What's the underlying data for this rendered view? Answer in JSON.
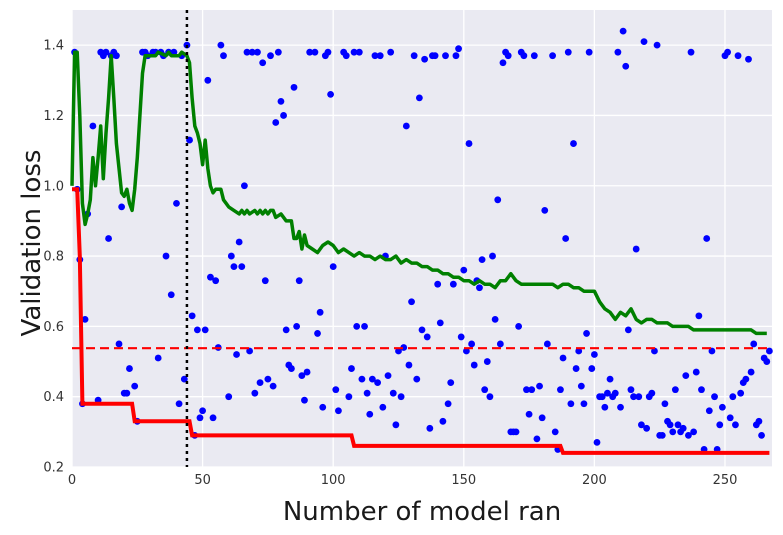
{
  "chart_data": {
    "type": "scatter",
    "xlabel": "Number of model ran",
    "ylabel": "Validation loss",
    "xlim": [
      0,
      268
    ],
    "ylim": [
      0.2,
      1.5
    ],
    "x_ticks": [
      0,
      50,
      100,
      150,
      200,
      250
    ],
    "y_ticks": [
      0.2,
      0.4,
      0.6,
      0.8,
      1.0,
      1.2,
      1.4
    ],
    "x_tick_labels": [
      "0",
      "50",
      "100",
      "150",
      "200",
      "250"
    ],
    "y_tick_labels": [
      "0.2",
      "0.4",
      "0.6",
      "0.8",
      "1.0",
      "1.2",
      "1.4"
    ],
    "grid": true,
    "colors": {
      "background": "#eaeaf2",
      "grid": "#ffffff",
      "points": "#0000ff",
      "best_so_far": "#ff0000",
      "moving_average": "#008000",
      "threshold": "#ff0000",
      "marker_line": "#000000"
    },
    "scatter_points": [
      [
        1,
        1.38
      ],
      [
        2,
        0.99
      ],
      [
        3,
        0.79
      ],
      [
        4,
        0.38
      ],
      [
        5,
        0.62
      ],
      [
        6,
        0.92
      ],
      [
        8,
        1.17
      ],
      [
        10,
        0.39
      ],
      [
        11,
        1.38
      ],
      [
        12,
        1.37
      ],
      [
        13,
        1.38
      ],
      [
        14,
        0.85
      ],
      [
        15,
        1.37
      ],
      [
        16,
        1.38
      ],
      [
        17,
        1.37
      ],
      [
        18,
        0.55
      ],
      [
        19,
        0.94
      ],
      [
        20,
        0.41
      ],
      [
        21,
        0.41
      ],
      [
        22,
        0.48
      ],
      [
        24,
        0.43
      ],
      [
        25,
        0.33
      ],
      [
        27,
        1.38
      ],
      [
        28,
        1.38
      ],
      [
        29,
        1.37
      ],
      [
        31,
        1.38
      ],
      [
        32,
        1.38
      ],
      [
        33,
        0.51
      ],
      [
        34,
        1.38
      ],
      [
        35,
        1.37
      ],
      [
        36,
        0.8
      ],
      [
        37,
        1.38
      ],
      [
        38,
        0.69
      ],
      [
        39,
        1.38
      ],
      [
        40,
        0.95
      ],
      [
        41,
        0.38
      ],
      [
        42,
        1.37
      ],
      [
        43,
        0.45
      ],
      [
        44,
        1.4
      ],
      [
        45,
        1.13
      ],
      [
        46,
        0.63
      ],
      [
        47,
        0.29
      ],
      [
        48,
        0.59
      ],
      [
        49,
        0.34
      ],
      [
        50,
        0.36
      ],
      [
        51,
        0.59
      ],
      [
        52,
        1.3
      ],
      [
        53,
        0.74
      ],
      [
        54,
        0.34
      ],
      [
        55,
        0.73
      ],
      [
        56,
        0.54
      ],
      [
        57,
        1.4
      ],
      [
        58,
        1.37
      ],
      [
        60,
        0.4
      ],
      [
        61,
        0.8
      ],
      [
        62,
        0.77
      ],
      [
        63,
        0.52
      ],
      [
        64,
        0.84
      ],
      [
        65,
        0.77
      ],
      [
        66,
        1.0
      ],
      [
        67,
        1.38
      ],
      [
        68,
        0.53
      ],
      [
        69,
        1.38
      ],
      [
        70,
        0.41
      ],
      [
        71,
        1.38
      ],
      [
        72,
        0.44
      ],
      [
        73,
        1.35
      ],
      [
        74,
        0.73
      ],
      [
        75,
        0.45
      ],
      [
        76,
        1.37
      ],
      [
        77,
        0.43
      ],
      [
        78,
        1.18
      ],
      [
        79,
        1.38
      ],
      [
        80,
        1.24
      ],
      [
        81,
        1.2
      ],
      [
        82,
        0.59
      ],
      [
        83,
        0.49
      ],
      [
        84,
        0.48
      ],
      [
        85,
        1.28
      ],
      [
        86,
        0.6
      ],
      [
        87,
        0.73
      ],
      [
        88,
        0.46
      ],
      [
        89,
        0.39
      ],
      [
        90,
        0.47
      ],
      [
        91,
        1.38
      ],
      [
        93,
        1.38
      ],
      [
        94,
        0.58
      ],
      [
        95,
        0.64
      ],
      [
        96,
        0.37
      ],
      [
        97,
        1.37
      ],
      [
        98,
        1.38
      ],
      [
        99,
        1.26
      ],
      [
        100,
        0.77
      ],
      [
        101,
        0.42
      ],
      [
        102,
        0.36
      ],
      [
        104,
        1.38
      ],
      [
        105,
        1.37
      ],
      [
        106,
        0.4
      ],
      [
        107,
        0.48
      ],
      [
        108,
        1.38
      ],
      [
        109,
        0.6
      ],
      [
        110,
        1.38
      ],
      [
        111,
        0.45
      ],
      [
        112,
        0.6
      ],
      [
        113,
        0.41
      ],
      [
        114,
        0.35
      ],
      [
        115,
        0.45
      ],
      [
        116,
        1.37
      ],
      [
        117,
        0.44
      ],
      [
        118,
        1.37
      ],
      [
        119,
        0.37
      ],
      [
        120,
        0.8
      ],
      [
        121,
        0.46
      ],
      [
        122,
        1.38
      ],
      [
        123,
        0.41
      ],
      [
        124,
        0.32
      ],
      [
        125,
        0.53
      ],
      [
        126,
        0.4
      ],
      [
        127,
        0.54
      ],
      [
        128,
        1.17
      ],
      [
        129,
        0.49
      ],
      [
        130,
        0.67
      ],
      [
        131,
        1.37
      ],
      [
        132,
        0.45
      ],
      [
        133,
        1.25
      ],
      [
        134,
        0.59
      ],
      [
        135,
        1.36
      ],
      [
        136,
        0.57
      ],
      [
        137,
        0.31
      ],
      [
        138,
        1.37
      ],
      [
        139,
        1.37
      ],
      [
        140,
        0.72
      ],
      [
        141,
        0.61
      ],
      [
        142,
        0.33
      ],
      [
        143,
        1.37
      ],
      [
        144,
        0.38
      ],
      [
        145,
        0.44
      ],
      [
        146,
        0.72
      ],
      [
        147,
        1.37
      ],
      [
        148,
        1.39
      ],
      [
        149,
        0.57
      ],
      [
        150,
        0.76
      ],
      [
        151,
        0.53
      ],
      [
        152,
        1.12
      ],
      [
        153,
        0.55
      ],
      [
        154,
        0.49
      ],
      [
        155,
        0.73
      ],
      [
        156,
        0.71
      ],
      [
        157,
        0.79
      ],
      [
        158,
        0.42
      ],
      [
        159,
        0.5
      ],
      [
        160,
        0.4
      ],
      [
        161,
        0.8
      ],
      [
        162,
        0.62
      ],
      [
        163,
        0.96
      ],
      [
        164,
        0.55
      ],
      [
        165,
        1.35
      ],
      [
        166,
        1.38
      ],
      [
        167,
        1.37
      ],
      [
        168,
        0.3
      ],
      [
        169,
        0.3
      ],
      [
        170,
        0.3
      ],
      [
        171,
        0.6
      ],
      [
        172,
        1.38
      ],
      [
        173,
        1.37
      ],
      [
        174,
        0.42
      ],
      [
        175,
        0.35
      ],
      [
        176,
        0.42
      ],
      [
        177,
        1.37
      ],
      [
        178,
        0.28
      ],
      [
        179,
        0.43
      ],
      [
        180,
        0.34
      ],
      [
        181,
        0.93
      ],
      [
        182,
        0.55
      ],
      [
        184,
        1.37
      ],
      [
        185,
        0.3
      ],
      [
        186,
        0.25
      ],
      [
        187,
        0.42
      ],
      [
        188,
        0.51
      ],
      [
        189,
        0.85
      ],
      [
        190,
        1.38
      ],
      [
        191,
        0.38
      ],
      [
        192,
        1.12
      ],
      [
        193,
        0.48
      ],
      [
        194,
        0.53
      ],
      [
        195,
        0.43
      ],
      [
        196,
        0.38
      ],
      [
        197,
        0.58
      ],
      [
        198,
        1.38
      ],
      [
        199,
        0.48
      ],
      [
        200,
        0.52
      ],
      [
        201,
        0.27
      ],
      [
        202,
        0.4
      ],
      [
        203,
        0.4
      ],
      [
        204,
        0.37
      ],
      [
        205,
        0.41
      ],
      [
        206,
        0.45
      ],
      [
        207,
        0.4
      ],
      [
        208,
        0.41
      ],
      [
        209,
        1.38
      ],
      [
        210,
        0.37
      ],
      [
        211,
        1.44
      ],
      [
        212,
        1.34
      ],
      [
        213,
        0.59
      ],
      [
        214,
        0.42
      ],
      [
        215,
        0.4
      ],
      [
        216,
        0.82
      ],
      [
        217,
        0.4
      ],
      [
        218,
        0.32
      ],
      [
        219,
        1.41
      ],
      [
        220,
        0.31
      ],
      [
        221,
        0.4
      ],
      [
        222,
        0.41
      ],
      [
        223,
        0.53
      ],
      [
        224,
        1.4
      ],
      [
        225,
        0.29
      ],
      [
        226,
        0.29
      ],
      [
        227,
        0.38
      ],
      [
        228,
        0.33
      ],
      [
        229,
        0.32
      ],
      [
        230,
        0.3
      ],
      [
        231,
        0.42
      ],
      [
        232,
        0.32
      ],
      [
        233,
        0.3
      ],
      [
        234,
        0.31
      ],
      [
        235,
        0.46
      ],
      [
        236,
        0.29
      ],
      [
        237,
        1.38
      ],
      [
        238,
        0.3
      ],
      [
        239,
        0.47
      ],
      [
        240,
        0.63
      ],
      [
        241,
        0.42
      ],
      [
        242,
        0.25
      ],
      [
        243,
        0.85
      ],
      [
        244,
        0.36
      ],
      [
        245,
        0.53
      ],
      [
        246,
        0.4
      ],
      [
        247,
        0.25
      ],
      [
        248,
        0.32
      ],
      [
        249,
        0.37
      ],
      [
        250,
        1.37
      ],
      [
        251,
        1.38
      ],
      [
        252,
        0.34
      ],
      [
        253,
        0.4
      ],
      [
        254,
        0.32
      ],
      [
        255,
        1.37
      ],
      [
        256,
        0.41
      ],
      [
        257,
        0.44
      ],
      [
        258,
        0.45
      ],
      [
        259,
        1.36
      ],
      [
        260,
        0.47
      ],
      [
        261,
        0.55
      ],
      [
        262,
        0.32
      ],
      [
        263,
        0.33
      ],
      [
        264,
        0.29
      ],
      [
        265,
        0.51
      ],
      [
        266,
        0.5
      ],
      [
        267,
        0.53
      ]
    ],
    "best_so_far_line": [
      [
        0,
        0.99
      ],
      [
        2,
        0.99
      ],
      [
        3,
        0.8
      ],
      [
        4,
        0.38
      ],
      [
        23,
        0.38
      ],
      [
        24,
        0.33
      ],
      [
        45,
        0.33
      ],
      [
        46,
        0.29
      ],
      [
        107,
        0.29
      ],
      [
        108,
        0.26
      ],
      [
        187,
        0.26
      ],
      [
        188,
        0.24
      ],
      [
        267,
        0.24
      ]
    ],
    "moving_average_line": [
      [
        0,
        1.0
      ],
      [
        1,
        1.38
      ],
      [
        2,
        1.38
      ],
      [
        3,
        1.2
      ],
      [
        4,
        0.95
      ],
      [
        5,
        0.89
      ],
      [
        6,
        0.92
      ],
      [
        7,
        0.96
      ],
      [
        8,
        1.08
      ],
      [
        9,
        1.0
      ],
      [
        10,
        1.08
      ],
      [
        11,
        1.17
      ],
      [
        12,
        1.02
      ],
      [
        13,
        1.15
      ],
      [
        14,
        1.25
      ],
      [
        15,
        1.37
      ],
      [
        16,
        1.25
      ],
      [
        17,
        1.12
      ],
      [
        18,
        1.05
      ],
      [
        19,
        0.98
      ],
      [
        20,
        0.97
      ],
      [
        21,
        0.99
      ],
      [
        22,
        0.95
      ],
      [
        23,
        0.93
      ],
      [
        24,
        0.99
      ],
      [
        25,
        1.08
      ],
      [
        26,
        1.2
      ],
      [
        27,
        1.32
      ],
      [
        28,
        1.37
      ],
      [
        29,
        1.37
      ],
      [
        32,
        1.37
      ],
      [
        33,
        1.38
      ],
      [
        36,
        1.37
      ],
      [
        37,
        1.38
      ],
      [
        38,
        1.37
      ],
      [
        41,
        1.37
      ],
      [
        42,
        1.38
      ],
      [
        44,
        1.37
      ],
      [
        45,
        1.35
      ],
      [
        46,
        1.25
      ],
      [
        47,
        1.17
      ],
      [
        48,
        1.15
      ],
      [
        49,
        1.12
      ],
      [
        50,
        1.06
      ],
      [
        51,
        1.13
      ],
      [
        52,
        1.05
      ],
      [
        53,
        1.0
      ],
      [
        54,
        0.98
      ],
      [
        55,
        0.99
      ],
      [
        56,
        0.99
      ],
      [
        57,
        0.99
      ],
      [
        58,
        0.96
      ],
      [
        59,
        0.95
      ],
      [
        60,
        0.94
      ],
      [
        62,
        0.93
      ],
      [
        64,
        0.92
      ],
      [
        65,
        0.93
      ],
      [
        66,
        0.92
      ],
      [
        67,
        0.93
      ],
      [
        68,
        0.92
      ],
      [
        70,
        0.93
      ],
      [
        71,
        0.92
      ],
      [
        72,
        0.93
      ],
      [
        73,
        0.92
      ],
      [
        74,
        0.93
      ],
      [
        75,
        0.92
      ],
      [
        76,
        0.93
      ],
      [
        77,
        0.93
      ],
      [
        78,
        0.91
      ],
      [
        80,
        0.92
      ],
      [
        82,
        0.9
      ],
      [
        84,
        0.9
      ],
      [
        85,
        0.85
      ],
      [
        86,
        0.85
      ],
      [
        87,
        0.87
      ],
      [
        88,
        0.82
      ],
      [
        89,
        0.86
      ],
      [
        90,
        0.83
      ],
      [
        92,
        0.82
      ],
      [
        94,
        0.81
      ],
      [
        96,
        0.83
      ],
      [
        98,
        0.84
      ],
      [
        100,
        0.83
      ],
      [
        102,
        0.81
      ],
      [
        104,
        0.82
      ],
      [
        106,
        0.81
      ],
      [
        108,
        0.8
      ],
      [
        110,
        0.81
      ],
      [
        112,
        0.8
      ],
      [
        114,
        0.8
      ],
      [
        116,
        0.79
      ],
      [
        118,
        0.8
      ],
      [
        120,
        0.79
      ],
      [
        122,
        0.79
      ],
      [
        124,
        0.8
      ],
      [
        126,
        0.78
      ],
      [
        128,
        0.79
      ],
      [
        130,
        0.78
      ],
      [
        132,
        0.78
      ],
      [
        134,
        0.77
      ],
      [
        136,
        0.77
      ],
      [
        138,
        0.76
      ],
      [
        140,
        0.76
      ],
      [
        142,
        0.75
      ],
      [
        144,
        0.75
      ],
      [
        146,
        0.74
      ],
      [
        148,
        0.74
      ],
      [
        150,
        0.73
      ],
      [
        152,
        0.73
      ],
      [
        154,
        0.72
      ],
      [
        156,
        0.73
      ],
      [
        158,
        0.72
      ],
      [
        160,
        0.72
      ],
      [
        162,
        0.71
      ],
      [
        164,
        0.73
      ],
      [
        166,
        0.73
      ],
      [
        168,
        0.75
      ],
      [
        170,
        0.73
      ],
      [
        172,
        0.72
      ],
      [
        174,
        0.72
      ],
      [
        176,
        0.72
      ],
      [
        178,
        0.72
      ],
      [
        180,
        0.72
      ],
      [
        182,
        0.72
      ],
      [
        184,
        0.72
      ],
      [
        186,
        0.71
      ],
      [
        188,
        0.72
      ],
      [
        190,
        0.72
      ],
      [
        192,
        0.71
      ],
      [
        194,
        0.71
      ],
      [
        196,
        0.7
      ],
      [
        198,
        0.7
      ],
      [
        200,
        0.7
      ],
      [
        202,
        0.67
      ],
      [
        204,
        0.65
      ],
      [
        206,
        0.64
      ],
      [
        208,
        0.62
      ],
      [
        210,
        0.64
      ],
      [
        212,
        0.63
      ],
      [
        214,
        0.65
      ],
      [
        216,
        0.62
      ],
      [
        218,
        0.61
      ],
      [
        220,
        0.62
      ],
      [
        222,
        0.62
      ],
      [
        224,
        0.61
      ],
      [
        226,
        0.61
      ],
      [
        228,
        0.61
      ],
      [
        230,
        0.6
      ],
      [
        232,
        0.6
      ],
      [
        234,
        0.6
      ],
      [
        236,
        0.6
      ],
      [
        238,
        0.59
      ],
      [
        240,
        0.59
      ],
      [
        242,
        0.59
      ],
      [
        244,
        0.59
      ],
      [
        246,
        0.59
      ],
      [
        248,
        0.59
      ],
      [
        250,
        0.59
      ],
      [
        252,
        0.59
      ],
      [
        254,
        0.59
      ],
      [
        256,
        0.59
      ],
      [
        258,
        0.59
      ],
      [
        260,
        0.59
      ],
      [
        262,
        0.58
      ],
      [
        264,
        0.58
      ],
      [
        266,
        0.58
      ]
    ],
    "threshold_y": 0.538,
    "vertical_marker_x": 44
  }
}
